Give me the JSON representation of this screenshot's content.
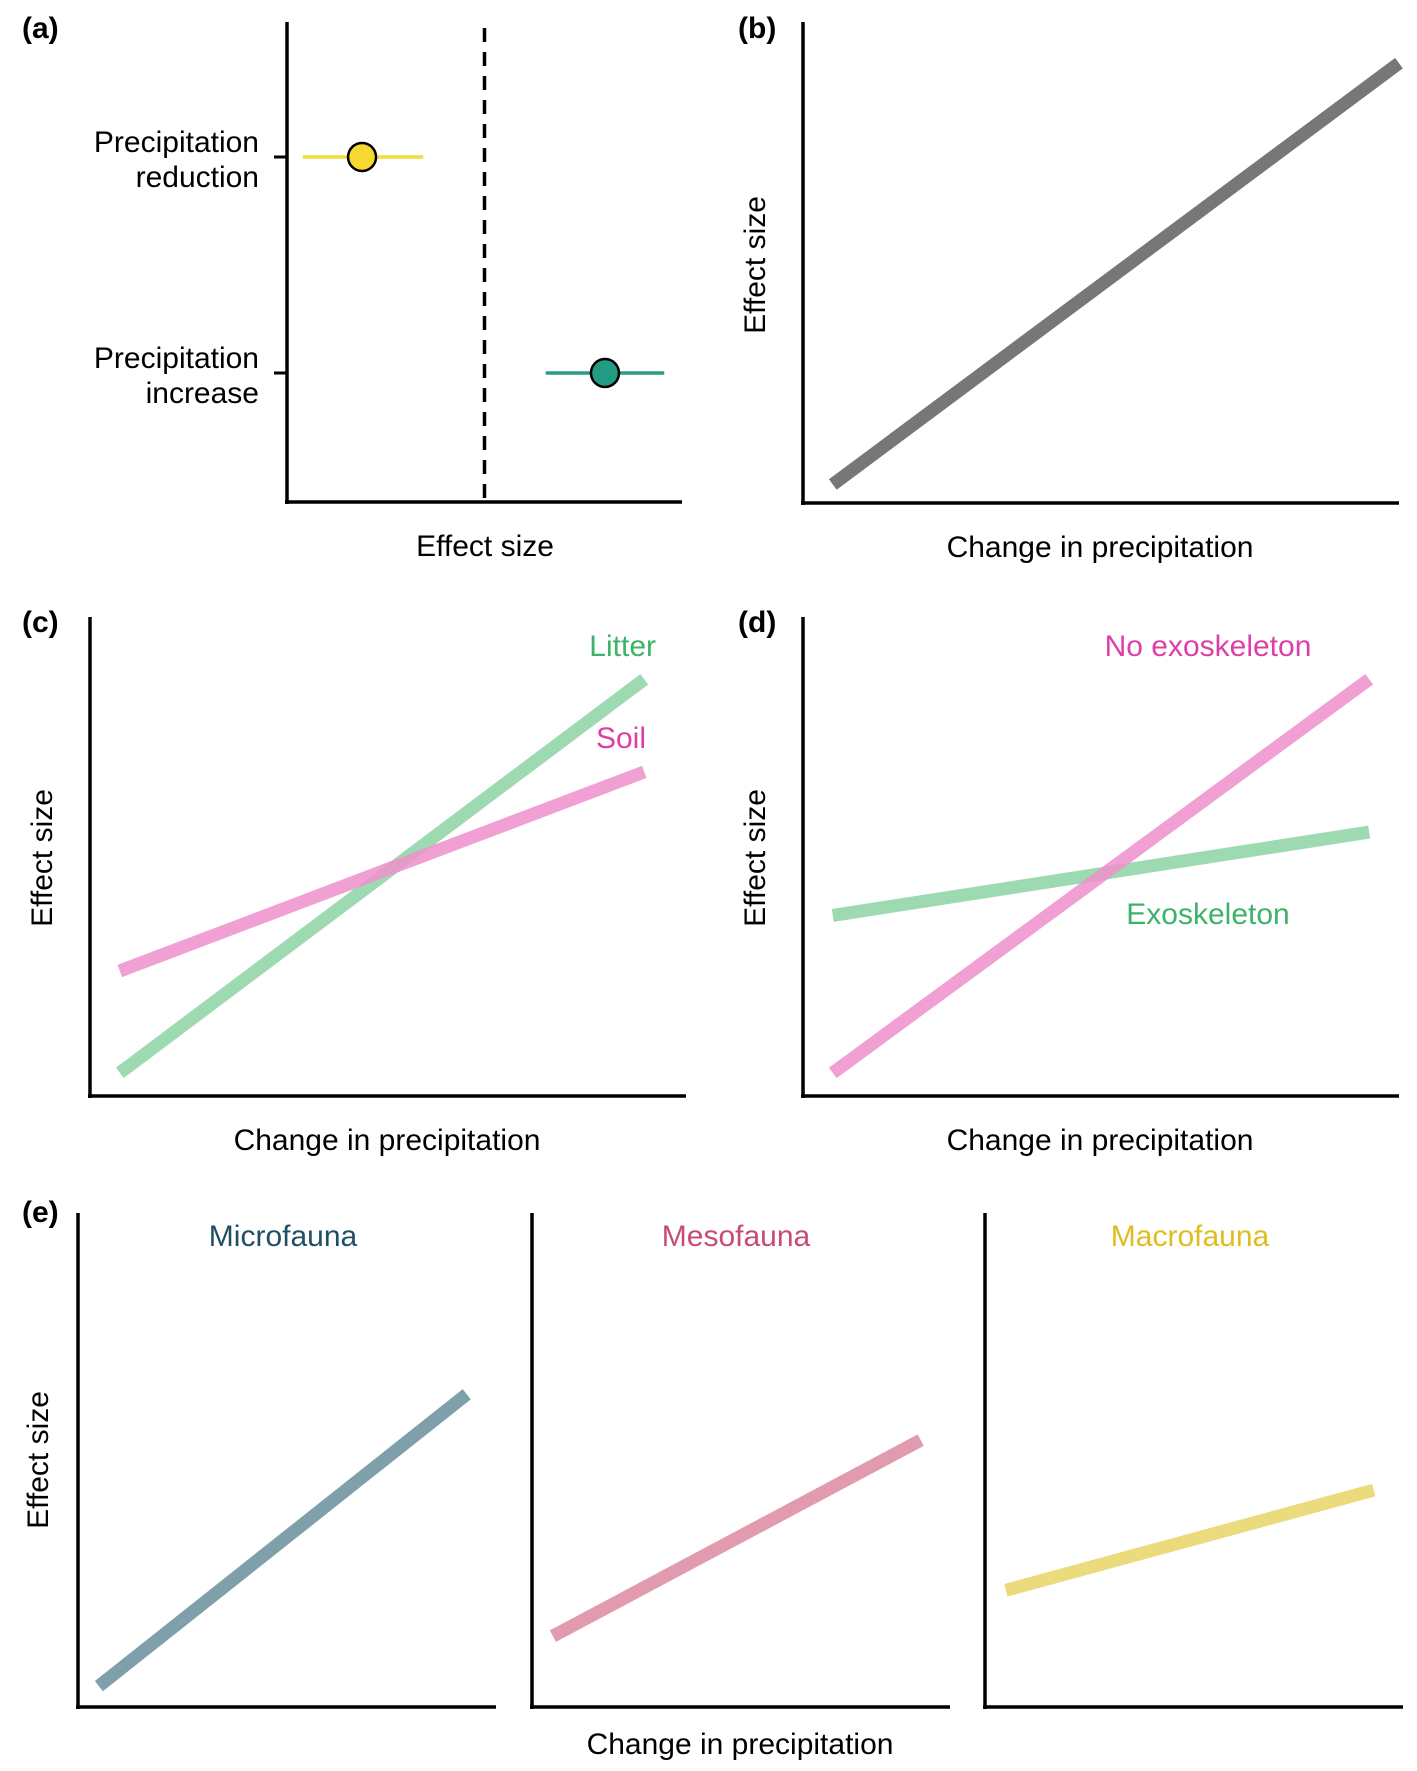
{
  "figure": {
    "panels": {
      "a": {
        "label": "(a)"
      },
      "b": {
        "label": "(b)"
      },
      "c": {
        "label": "(c)"
      },
      "d": {
        "label": "(d)"
      },
      "e": {
        "label": "(e)"
      }
    }
  },
  "chart_data": [
    {
      "panel": "(a)",
      "type": "scatter",
      "categories": [
        "Precipitation reduction",
        "Precipitation increase"
      ],
      "category_lines": [
        [
          "Precipitation",
          "reduction"
        ],
        [
          "Precipitation",
          "increase"
        ]
      ],
      "xlabel": "Effect size",
      "xlim": [
        -1,
        1
      ],
      "reference_line": 0,
      "points": [
        {
          "category": "Precipitation reduction",
          "value": -0.62,
          "ci": [
            -0.92,
            -0.31
          ],
          "color": "#f5d832",
          "line_color": "#f0de3c"
        },
        {
          "category": "Precipitation increase",
          "value": 0.61,
          "ci": [
            0.31,
            0.91
          ],
          "color": "#239b82",
          "line_color": "#2a9c85"
        }
      ]
    },
    {
      "panel": "(b)",
      "type": "line",
      "xlabel": "Change in precipitation",
      "ylabel": "Effect size",
      "xlim": [
        0,
        1
      ],
      "ylim": [
        0,
        1
      ],
      "series": [
        {
          "x": [
            0.05,
            1.0
          ],
          "y": [
            0.04,
            0.95
          ],
          "color": "#777777"
        }
      ]
    },
    {
      "panel": "(c)",
      "type": "line",
      "xlabel": "Change in precipitation",
      "ylabel": "Effect size",
      "xlim": [
        0,
        1
      ],
      "ylim": [
        0,
        1
      ],
      "series": [
        {
          "name": "Litter",
          "x": [
            0.05,
            0.93
          ],
          "y": [
            0.05,
            0.9
          ],
          "color": "#8dd4a3",
          "label_color": "#3db36a"
        },
        {
          "name": "Soil",
          "x": [
            0.05,
            0.93
          ],
          "y": [
            0.27,
            0.7
          ],
          "color": "#ee8fcc",
          "label_color": "#dd3fa6"
        }
      ]
    },
    {
      "panel": "(d)",
      "type": "line",
      "xlabel": "Change in precipitation",
      "ylabel": "Effect size",
      "xlim": [
        0,
        1
      ],
      "ylim": [
        0,
        1
      ],
      "series": [
        {
          "name": "No exoskeleton",
          "x": [
            0.05,
            0.95
          ],
          "y": [
            0.05,
            0.9
          ],
          "color": "#ee8fcc",
          "label_color": "#dd3fa6"
        },
        {
          "name": "Exoskeleton",
          "x": [
            0.05,
            0.95
          ],
          "y": [
            0.39,
            0.57
          ],
          "color": "#8dd4a3",
          "label_color": "#3db36a"
        }
      ]
    },
    {
      "panel": "(e)",
      "type": "line",
      "xlabel": "Change in precipitation",
      "ylabel": "Effect size",
      "xlim": [
        0,
        1
      ],
      "ylim": [
        0,
        1
      ],
      "series": [
        {
          "name": "Microfauna",
          "x": [
            0.05,
            0.93
          ],
          "y": [
            0.05,
            0.75
          ],
          "color": "#7f9fab",
          "label_color": "#1f4e65"
        },
        {
          "name": "Mesofauna",
          "x": [
            0.05,
            0.93
          ],
          "y": [
            0.17,
            0.64
          ],
          "color": "#e29aae",
          "label_color": "#c94a79"
        },
        {
          "name": "Macrofauna",
          "x": [
            0.05,
            0.93
          ],
          "y": [
            0.28,
            0.52
          ],
          "color": "#ecdb7d",
          "label_color": "#e0bd1e"
        }
      ]
    }
  ]
}
